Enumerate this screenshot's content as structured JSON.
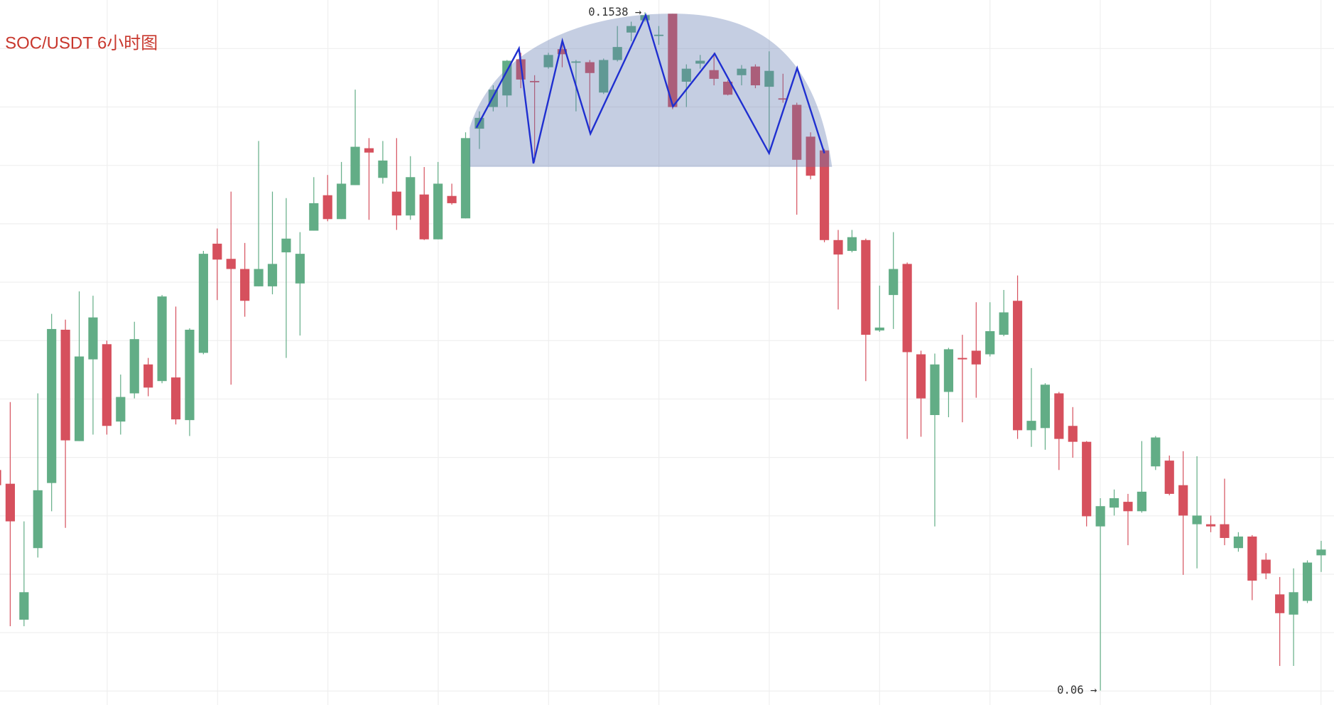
{
  "chart_data": {
    "type": "candlestick",
    "title": "SOC/USDT  6小时图",
    "up_color": "#62ad86",
    "down_color": "#d6505d",
    "grid": true,
    "ylim": [
      0.058,
      0.1555
    ],
    "max_label": "0.1538 →",
    "min_label": "0.06 →",
    "open": [
      0.0905,
      0.0886,
      0.0698,
      0.0797,
      0.0887,
      0.1099,
      0.0945,
      0.1058,
      0.1079,
      0.0972,
      0.1011,
      0.1051,
      0.1028,
      0.1033,
      0.0974,
      0.1067,
      0.1218,
      0.1197,
      0.1183,
      0.1159,
      0.1159,
      0.1206,
      0.1163,
      0.1236,
      0.1285,
      0.1252,
      0.1299,
      0.135,
      0.1309,
      0.129,
      0.1257,
      0.1286,
      0.1224,
      0.1284,
      0.1253,
      0.1377,
      0.1407,
      0.1423,
      0.1473,
      0.1443,
      0.1462,
      0.1487,
      0.1469,
      0.1469,
      0.1427,
      0.1472,
      0.151,
      0.1527,
      0.1506,
      0.1536,
      0.1442,
      0.1467,
      0.1458,
      0.1442,
      0.1451,
      0.1463,
      0.1435,
      0.1419,
      0.141,
      0.1366,
      0.1347,
      0.1223,
      0.1208,
      0.1223,
      0.1098,
      0.1147,
      0.119,
      0.1065,
      0.0981,
      0.1013,
      0.106,
      0.107,
      0.1065,
      0.1092,
      0.1139,
      0.096,
      0.0963,
      0.1011,
      0.0966,
      0.0944,
      0.0827,
      0.0853,
      0.0861,
      0.0848,
      0.091,
      0.0918,
      0.0884,
      0.083,
      0.083,
      0.083,
      0.0797,
      0.0813,
      0.0781,
      0.0733,
      0.0705,
      0.0724,
      0.0787
    ],
    "close": [
      0.0884,
      0.0834,
      0.0736,
      0.0877,
      0.11,
      0.0946,
      0.1062,
      0.1116,
      0.0966,
      0.1006,
      0.1086,
      0.1019,
      0.1145,
      0.0975,
      0.1099,
      0.1204,
      0.1196,
      0.1183,
      0.1139,
      0.1183,
      0.119,
      0.1225,
      0.1204,
      0.1274,
      0.1252,
      0.1301,
      0.1352,
      0.1344,
      0.1333,
      0.1257,
      0.131,
      0.1224,
      0.1301,
      0.1274,
      0.1364,
      0.1392,
      0.1431,
      0.1471,
      0.1445,
      0.1442,
      0.1479,
      0.148,
      0.147,
      0.1454,
      0.1472,
      0.149,
      0.1519,
      0.1534,
      0.1507,
      0.1407,
      0.146,
      0.1471,
      0.1446,
      0.1424,
      0.146,
      0.1437,
      0.1457,
      0.1418,
      0.1334,
      0.1312,
      0.1223,
      0.1203,
      0.1227,
      0.1092,
      0.1102,
      0.1183,
      0.1068,
      0.1004,
      0.1051,
      0.1072,
      0.1058,
      0.1051,
      0.1097,
      0.1123,
      0.096,
      0.0973,
      0.1023,
      0.0948,
      0.0944,
      0.0841,
      0.0855,
      0.0866,
      0.0848,
      0.0875,
      0.095,
      0.0872,
      0.0842,
      0.0842,
      0.0827,
      0.0811,
      0.0813,
      0.0752,
      0.0762,
      0.0707,
      0.0736,
      0.0777,
      0.0795
    ],
    "high": [
      0.0907,
      0.0999,
      0.0834,
      0.1011,
      0.1121,
      0.1113,
      0.1152,
      0.1146,
      0.1084,
      0.1037,
      0.111,
      0.106,
      0.1147,
      0.1131,
      0.1101,
      0.1208,
      0.1239,
      0.129,
      0.1219,
      0.136,
      0.129,
      0.1281,
      0.1234,
      0.131,
      0.1313,
      0.1331,
      0.1431,
      0.1364,
      0.136,
      0.1364,
      0.1339,
      0.1324,
      0.1331,
      0.1301,
      0.1372,
      0.1401,
      0.1437,
      0.1472,
      0.1482,
      0.1451,
      0.1482,
      0.1493,
      0.1472,
      0.1472,
      0.1474,
      0.1519,
      0.1525,
      0.1538,
      0.1519,
      0.1536,
      0.1466,
      0.1479,
      0.1482,
      0.1444,
      0.1465,
      0.1466,
      0.1484,
      0.1453,
      0.1413,
      0.1372,
      0.1349,
      0.1237,
      0.1237,
      0.1225,
      0.116,
      0.1234,
      0.1192,
      0.107,
      0.1066,
      0.1074,
      0.1092,
      0.1137,
      0.1137,
      0.1154,
      0.1174,
      0.1046,
      0.1025,
      0.1013,
      0.0992,
      0.0945,
      0.0866,
      0.0878,
      0.0872,
      0.0945,
      0.0952,
      0.0925,
      0.0931,
      0.0924,
      0.0842,
      0.0893,
      0.0819,
      0.0815,
      0.079,
      0.0757,
      0.0769,
      0.078,
      0.0807
    ],
    "low": [
      0.0872,
      0.0689,
      0.0689,
      0.0784,
      0.0848,
      0.0825,
      0.0945,
      0.0954,
      0.0954,
      0.0954,
      0.1004,
      0.1007,
      0.1025,
      0.0968,
      0.0952,
      0.1065,
      0.114,
      0.1023,
      0.1117,
      0.1159,
      0.1148,
      0.106,
      0.1091,
      0.1236,
      0.1249,
      0.1252,
      0.1299,
      0.1251,
      0.1301,
      0.1237,
      0.1251,
      0.1223,
      0.1224,
      0.1272,
      0.1253,
      0.1349,
      0.1401,
      0.1407,
      0.1433,
      0.1331,
      0.146,
      0.1462,
      0.1401,
      0.1372,
      0.1425,
      0.147,
      0.1498,
      0.1525,
      0.1493,
      0.1404,
      0.1407,
      0.146,
      0.1437,
      0.1423,
      0.1437,
      0.1433,
      0.1343,
      0.1413,
      0.1258,
      0.1307,
      0.122,
      0.1127,
      0.1206,
      0.1028,
      0.1096,
      0.11,
      0.0948,
      0.0951,
      0.0827,
      0.0978,
      0.0971,
      0.1005,
      0.1062,
      0.109,
      0.0948,
      0.0937,
      0.0933,
      0.0905,
      0.0922,
      0.0827,
      0.06,
      0.0842,
      0.0801,
      0.0846,
      0.0905,
      0.087,
      0.076,
      0.0769,
      0.0819,
      0.0801,
      0.0792,
      0.0725,
      0.0754,
      0.0634,
      0.0634,
      0.0721,
      0.0764
    ]
  }
}
